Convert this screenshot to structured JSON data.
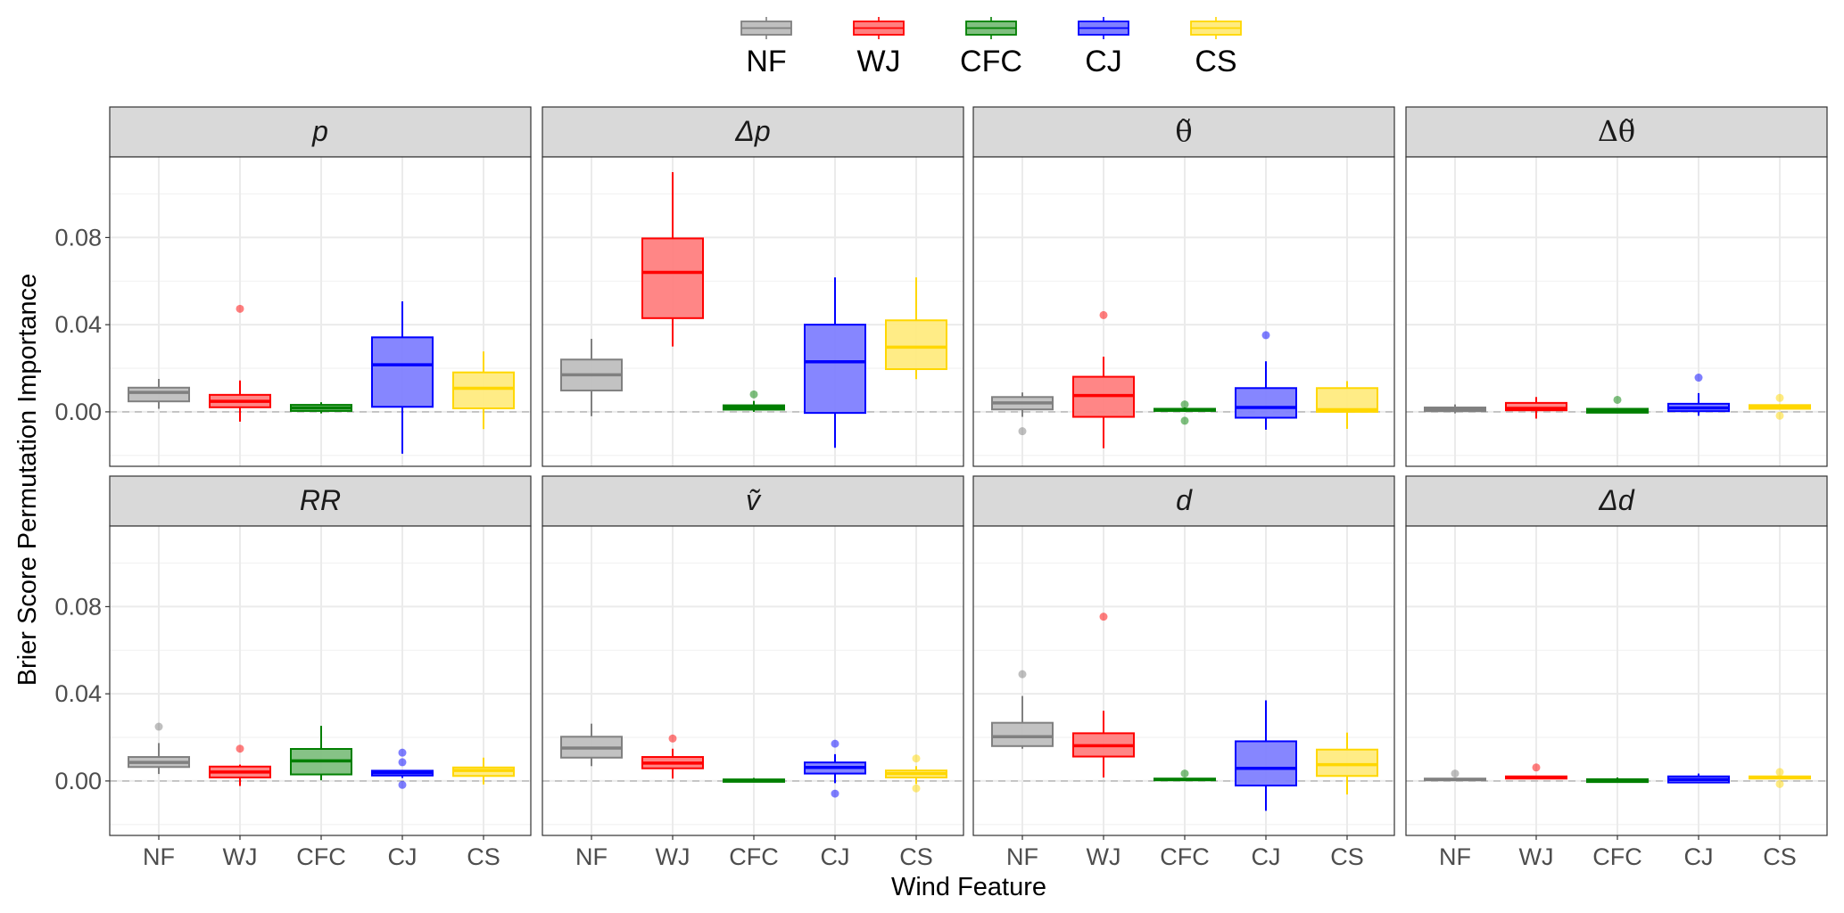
{
  "chart_data": {
    "type": "boxplot",
    "title": "",
    "xlabel": "Wind Feature",
    "ylabel": "Brier Score Permutation Importance",
    "ylim": [
      -0.025,
      0.117
    ],
    "y_major_ticks": [
      0.0,
      0.04,
      0.08
    ],
    "y_tick_labels": [
      "0.00",
      "0.04",
      "0.08"
    ],
    "y_minor_gridlines": [
      -0.02,
      0.02,
      0.06,
      0.1
    ],
    "reference_line": {
      "y": 0,
      "style": "dashed"
    },
    "grid": true,
    "legend": {
      "placement": "top-center",
      "entries": [
        {
          "label": "NF",
          "color": "#808080",
          "fill": "#bfbfbf"
        },
        {
          "label": "WJ",
          "color": "#ff0000",
          "fill": "#ff8080"
        },
        {
          "label": "CFC",
          "color": "#007f00",
          "fill": "#80bf80"
        },
        {
          "label": "CJ",
          "color": "#0000ff",
          "fill": "#8080ff"
        },
        {
          "label": "CS",
          "color": "#ffd700",
          "fill": "#ffeb80"
        }
      ]
    },
    "categories": [
      "NF",
      "WJ",
      "CFC",
      "CJ",
      "CS"
    ],
    "facet_layout": {
      "rows": 2,
      "cols": 4
    },
    "panels": [
      {
        "label": "p",
        "label_style": "italic",
        "boxes": [
          {
            "cat": "NF",
            "lower": 0.0014,
            "q1": 0.0048,
            "median": 0.0089,
            "q3": 0.0111,
            "upper": 0.0151,
            "outliers": []
          },
          {
            "cat": "WJ",
            "lower": -0.0045,
            "q1": 0.0021,
            "median": 0.0048,
            "q3": 0.0078,
            "upper": 0.0144,
            "outliers": [
              0.0473
            ]
          },
          {
            "cat": "CFC",
            "lower": -0.0007,
            "q1": 0.0004,
            "median": 0.0018,
            "q3": 0.0032,
            "upper": 0.0044,
            "outliers": []
          },
          {
            "cat": "CJ",
            "lower": -0.0192,
            "q1": 0.0023,
            "median": 0.0216,
            "q3": 0.0342,
            "upper": 0.0507,
            "outliers": []
          },
          {
            "cat": "CS",
            "lower": -0.0079,
            "q1": 0.0016,
            "median": 0.0108,
            "q3": 0.0181,
            "upper": 0.0277,
            "outliers": []
          }
        ]
      },
      {
        "label": "Δp",
        "label_style": "italic",
        "boxes": [
          {
            "cat": "NF",
            "lower": -0.002,
            "q1": 0.0098,
            "median": 0.017,
            "q3": 0.024,
            "upper": 0.0335,
            "outliers": []
          },
          {
            "cat": "WJ",
            "lower": 0.03,
            "q1": 0.043,
            "median": 0.064,
            "q3": 0.0796,
            "upper": 0.11,
            "outliers": []
          },
          {
            "cat": "CFC",
            "lower": 0.0,
            "q1": 0.001,
            "median": 0.002,
            "q3": 0.003,
            "upper": 0.005,
            "outliers": [
              0.008
            ]
          },
          {
            "cat": "CJ",
            "lower": -0.0165,
            "q1": -0.0005,
            "median": 0.023,
            "q3": 0.04,
            "upper": 0.0617,
            "outliers": []
          },
          {
            "cat": "CS",
            "lower": 0.015,
            "q1": 0.0196,
            "median": 0.0297,
            "q3": 0.042,
            "upper": 0.0617,
            "outliers": []
          }
        ]
      },
      {
        "label": "θ̃",
        "label_style": "serif",
        "boxes": [
          {
            "cat": "NF",
            "lower": -0.0023,
            "q1": 0.0011,
            "median": 0.0041,
            "q3": 0.0068,
            "upper": 0.0089,
            "outliers": [
              -0.0089
            ]
          },
          {
            "cat": "WJ",
            "lower": -0.0167,
            "q1": -0.0023,
            "median": 0.0075,
            "q3": 0.0161,
            "upper": 0.0253,
            "outliers": [
              0.0444
            ]
          },
          {
            "cat": "CFC",
            "lower": 0.0,
            "q1": 0.0004,
            "median": 0.001,
            "q3": 0.0014,
            "upper": 0.002,
            "outliers": [
              0.0034,
              -0.0041
            ]
          },
          {
            "cat": "CJ",
            "lower": -0.0082,
            "q1": -0.0027,
            "median": 0.002,
            "q3": 0.0109,
            "upper": 0.0232,
            "outliers": [
              0.0352
            ]
          },
          {
            "cat": "CS",
            "lower": -0.0078,
            "q1": 0.0,
            "median": 0.001,
            "q3": 0.0109,
            "upper": 0.0141,
            "outliers": []
          }
        ]
      },
      {
        "label": "Δθ̃",
        "label_style": "serif",
        "boxes": [
          {
            "cat": "NF",
            "lower": -0.0007,
            "q1": 0.0003,
            "median": 0.001,
            "q3": 0.002,
            "upper": 0.0034,
            "outliers": []
          },
          {
            "cat": "WJ",
            "lower": -0.0031,
            "q1": 0.0007,
            "median": 0.0016,
            "q3": 0.0041,
            "upper": 0.0068,
            "outliers": []
          },
          {
            "cat": "CFC",
            "lower": -0.0006,
            "q1": -0.0004,
            "median": 0.0007,
            "q3": 0.0014,
            "upper": 0.0016,
            "outliers": [
              0.0055
            ]
          },
          {
            "cat": "CJ",
            "lower": -0.0018,
            "q1": 0.0003,
            "median": 0.0018,
            "q3": 0.0037,
            "upper": 0.0086,
            "outliers": [
              0.0157
            ]
          },
          {
            "cat": "CS",
            "lower": 0.001,
            "q1": 0.0014,
            "median": 0.0023,
            "q3": 0.0031,
            "upper": 0.0035,
            "outliers": [
              0.0064,
              -0.0018
            ]
          }
        ]
      },
      {
        "label": "RR",
        "label_style": "italic",
        "boxes": [
          {
            "cat": "NF",
            "lower": 0.0032,
            "q1": 0.0064,
            "median": 0.0085,
            "q3": 0.011,
            "upper": 0.0174,
            "outliers": [
              0.0249
            ]
          },
          {
            "cat": "WJ",
            "lower": -0.0023,
            "q1": 0.0016,
            "median": 0.0041,
            "q3": 0.0066,
            "upper": 0.0075,
            "outliers": [
              0.0148
            ]
          },
          {
            "cat": "CFC",
            "lower": 0.0003,
            "q1": 0.003,
            "median": 0.0092,
            "q3": 0.0147,
            "upper": 0.0253,
            "outliers": []
          },
          {
            "cat": "CJ",
            "lower": 0.0014,
            "q1": 0.0025,
            "median": 0.0038,
            "q3": 0.0047,
            "upper": 0.005,
            "outliers": [
              0.013,
              0.0086,
              -0.0018
            ]
          },
          {
            "cat": "CS",
            "lower": -0.0016,
            "q1": 0.0023,
            "median": 0.0048,
            "q3": 0.0062,
            "upper": 0.0107,
            "outliers": []
          }
        ]
      },
      {
        "label": "ṽ",
        "label_style": "italic",
        "boxes": [
          {
            "cat": "NF",
            "lower": 0.0068,
            "q1": 0.0107,
            "median": 0.0151,
            "q3": 0.0203,
            "upper": 0.0263,
            "outliers": []
          },
          {
            "cat": "WJ",
            "lower": 0.0011,
            "q1": 0.0058,
            "median": 0.0082,
            "q3": 0.011,
            "upper": 0.0148,
            "outliers": [
              0.0195
            ]
          },
          {
            "cat": "CFC",
            "lower": -0.0004,
            "q1": -0.0004,
            "median": 0.0003,
            "q3": 0.0007,
            "upper": 0.0014,
            "outliers": []
          },
          {
            "cat": "CJ",
            "lower": -0.001,
            "q1": 0.0034,
            "median": 0.0062,
            "q3": 0.0085,
            "upper": 0.0123,
            "outliers": [
              0.0171,
              -0.0058
            ]
          },
          {
            "cat": "CS",
            "lower": -0.0014,
            "q1": 0.0016,
            "median": 0.0034,
            "q3": 0.0048,
            "upper": 0.0068,
            "outliers": [
              0.0103,
              -0.0034
            ]
          }
        ]
      },
      {
        "label": "d",
        "label_style": "italic",
        "boxes": [
          {
            "cat": "NF",
            "lower": 0.0148,
            "q1": 0.016,
            "median": 0.0203,
            "q3": 0.0267,
            "upper": 0.039,
            "outliers": [
              0.049
            ]
          },
          {
            "cat": "WJ",
            "lower": 0.0016,
            "q1": 0.0112,
            "median": 0.0162,
            "q3": 0.0219,
            "upper": 0.0322,
            "outliers": [
              0.0754
            ]
          },
          {
            "cat": "CFC",
            "lower": 0.0003,
            "q1": 0.0003,
            "median": 0.0007,
            "q3": 0.0011,
            "upper": 0.0014,
            "outliers": [
              0.0034
            ]
          },
          {
            "cat": "CJ",
            "lower": -0.0137,
            "q1": -0.0021,
            "median": 0.0058,
            "q3": 0.0182,
            "upper": 0.037,
            "outliers": []
          },
          {
            "cat": "CS",
            "lower": -0.0062,
            "q1": 0.0023,
            "median": 0.0075,
            "q3": 0.0144,
            "upper": 0.0222,
            "outliers": []
          }
        ]
      },
      {
        "label": "Δd",
        "label_style": "italic",
        "boxes": [
          {
            "cat": "NF",
            "lower": 0.0,
            "q1": 0.0003,
            "median": 0.0007,
            "q3": 0.0011,
            "upper": 0.0014,
            "outliers": [
              0.0034
            ]
          },
          {
            "cat": "WJ",
            "lower": 0.0008,
            "q1": 0.0011,
            "median": 0.0016,
            "q3": 0.0021,
            "upper": 0.0024,
            "outliers": [
              0.0062
            ]
          },
          {
            "cat": "CFC",
            "lower": -0.0006,
            "q1": -0.0005,
            "median": 0.0003,
            "q3": 0.0008,
            "upper": 0.0016,
            "outliers": []
          },
          {
            "cat": "CJ",
            "lower": -0.0008,
            "q1": -0.0007,
            "median": 0.0007,
            "q3": 0.0021,
            "upper": 0.0034,
            "outliers": []
          },
          {
            "cat": "CS",
            "lower": 0.0008,
            "q1": 0.0011,
            "median": 0.0016,
            "q3": 0.0021,
            "upper": 0.0024,
            "outliers": [
              0.0041,
              -0.0014
            ]
          }
        ]
      }
    ]
  }
}
